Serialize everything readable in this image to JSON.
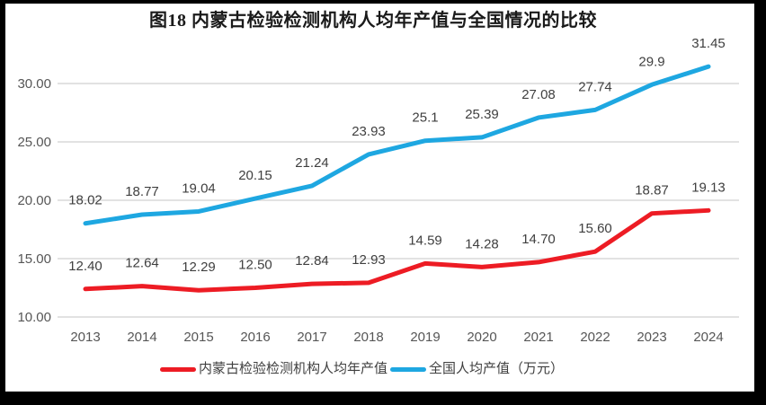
{
  "colors": {
    "frame": "#000000",
    "background": "#FFFFFF",
    "grid": "#D9D9D9",
    "axis_text": "#565656",
    "data_label_text": "#3F3F3F",
    "title_text": "#1A1A1A",
    "red_series": "#ED1C24",
    "blue_series": "#1EA7E1"
  },
  "chart_data": {
    "type": "line",
    "title": "图18  内蒙古检验检测机构人均年产值与全国情况的比较",
    "xlabel": "",
    "ylabel": "",
    "categories": [
      "2013",
      "2014",
      "2015",
      "2016",
      "2017",
      "2018",
      "2019",
      "2020",
      "2021",
      "2022",
      "2023",
      "2024"
    ],
    "series": [
      {
        "name": "内蒙古检验检测机构人均年产值",
        "color": "#ED1C24",
        "values": [
          12.4,
          12.64,
          12.29,
          12.5,
          12.84,
          12.93,
          14.59,
          14.28,
          14.7,
          15.6,
          18.87,
          19.13
        ],
        "labels": [
          "12.40",
          "12.64",
          "12.29",
          "12.50",
          "12.84",
          "12.93",
          "14.59",
          "14.28",
          "14.70",
          "15.60",
          "18.87",
          "19.13"
        ]
      },
      {
        "name": "全国人均产值（万元）",
        "color": "#1EA7E1",
        "values": [
          18.02,
          18.77,
          19.04,
          20.15,
          21.24,
          23.93,
          25.1,
          25.39,
          27.08,
          27.74,
          29.9,
          31.45
        ],
        "labels": [
          "18.02",
          "18.77",
          "19.04",
          "20.15",
          "21.24",
          "23.93",
          "25.1",
          "25.39",
          "27.08",
          "27.74",
          "29.9",
          "31.45"
        ]
      }
    ],
    "ylim": [
      10,
      32.5
    ],
    "yticks": [
      {
        "value": 10,
        "label": "10.00"
      },
      {
        "value": 15,
        "label": "15.00"
      },
      {
        "value": 20,
        "label": "20.00"
      },
      {
        "value": 25,
        "label": "25.00"
      },
      {
        "value": 30,
        "label": "30.00"
      }
    ],
    "grid": true,
    "legend_position": "bottom"
  },
  "legend": {
    "items": [
      {
        "label": "内蒙古检验检测机构人均年产值",
        "color": "#ED1C24"
      },
      {
        "label": "全国人均产值（万元）",
        "color": "#1EA7E1"
      }
    ]
  }
}
